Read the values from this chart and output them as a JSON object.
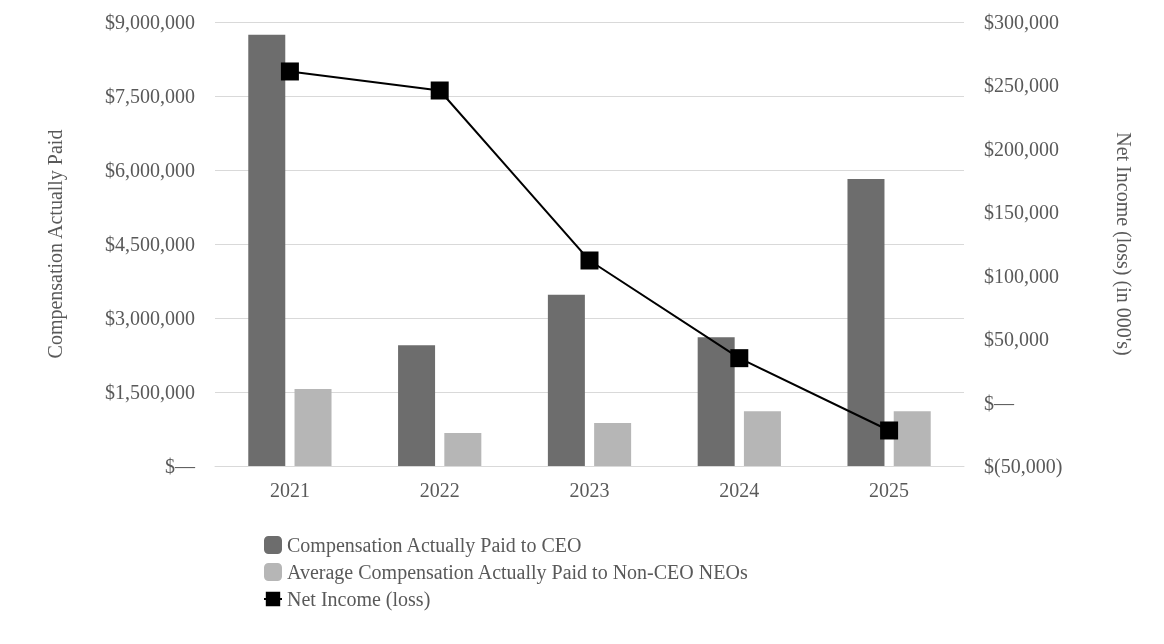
{
  "chart_data": {
    "type": "bar",
    "categories": [
      "2021",
      "2022",
      "2023",
      "2024",
      "2025"
    ],
    "ylabel": "Compensation Actually Paid",
    "y2label": "Net Income (loss) (in 000's)",
    "series": [
      {
        "name": "Compensation Actually Paid to CEO",
        "color": "#6d6d6d",
        "values": [
          8740000,
          2450000,
          3470000,
          2610000,
          5820000
        ]
      },
      {
        "name": "Average Compensation Actually Paid to Non-CEO NEOs",
        "color": "#b6b6b6",
        "values": [
          1560000,
          670000,
          870000,
          1110000,
          1110000
        ]
      },
      {
        "name": "Net Income (loss)",
        "type": "line",
        "axis": "y2",
        "color": "#000000",
        "marker": "square",
        "values": [
          261000,
          246000,
          112000,
          35000,
          -22000
        ]
      }
    ],
    "ylim": [
      0,
      9000000
    ],
    "yticks": [
      {
        "value": 0,
        "label": "$—"
      },
      {
        "value": 1500000,
        "label": "$1,500,000"
      },
      {
        "value": 3000000,
        "label": "$3,000,000"
      },
      {
        "value": 4500000,
        "label": "$4,500,000"
      },
      {
        "value": 6000000,
        "label": "$6,000,000"
      },
      {
        "value": 7500000,
        "label": "$7,500,000"
      },
      {
        "value": 9000000,
        "label": "$9,000,000"
      }
    ],
    "y2lim": [
      -50000,
      300000
    ],
    "y2ticks": [
      {
        "value": -50000,
        "label": "$(50,000)"
      },
      {
        "value": 0,
        "label": "$—"
      },
      {
        "value": 50000,
        "label": "$50,000"
      },
      {
        "value": 100000,
        "label": "$100,000"
      },
      {
        "value": 150000,
        "label": "$150,000"
      },
      {
        "value": 200000,
        "label": "$200,000"
      },
      {
        "value": 250000,
        "label": "$250,000"
      },
      {
        "value": 300000,
        "label": "$300,000"
      }
    ],
    "grid": "y",
    "legend": "bottom"
  }
}
